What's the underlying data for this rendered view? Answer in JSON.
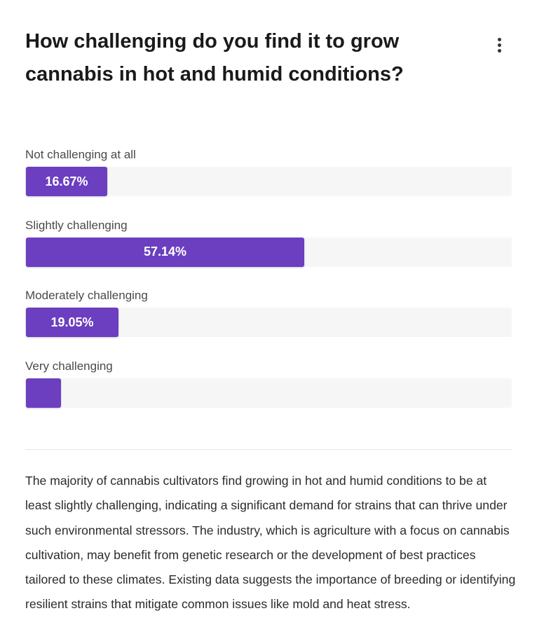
{
  "title": "How challenging do you find it to grow cannabis in hot and humid conditions?",
  "menu_icon": "more-vertical-icon",
  "accent_color": "#6b3fbf",
  "chart_data": {
    "type": "bar",
    "orientation": "horizontal",
    "categories": [
      "Not challenging at all",
      "Slightly challenging",
      "Moderately challenging",
      "Very challenging"
    ],
    "values": [
      16.67,
      57.14,
      19.05,
      7.14
    ],
    "value_labels": [
      "16.67%",
      "57.14%",
      "19.05%",
      ""
    ],
    "xlim": [
      0,
      100
    ],
    "grid": false
  },
  "summary": "The majority of cannabis cultivators find growing in hot and humid conditions to be at least slightly challenging, indicating a significant demand for strains that can thrive under such environmental stressors. The industry, which is agriculture with a focus on cannabis cultivation, may benefit from genetic research or the development of best practices tailored to these climates. Existing data suggests the importance of breeding or identifying resilient strains that mitigate common issues like mold and heat stress."
}
